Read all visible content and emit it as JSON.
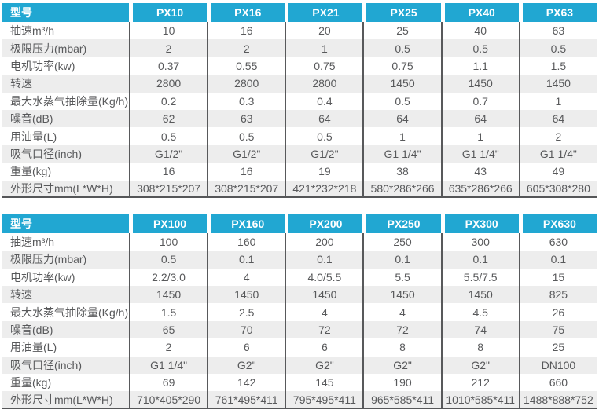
{
  "accent_color": "#21a7d2",
  "text_color": "#58595b",
  "stripe_color": "#ededed",
  "separator_color": "#58595b",
  "tables": [
    {
      "header_label": "型号",
      "models": [
        "PX10",
        "PX16",
        "PX21",
        "PX25",
        "PX40",
        "PX63"
      ],
      "rows": [
        {
          "label": "抽速m³/h",
          "values": [
            "10",
            "16",
            "20",
            "25",
            "40",
            "63"
          ]
        },
        {
          "label": "极限压力(mbar)",
          "values": [
            "2",
            "2",
            "1",
            "0.5",
            "0.5",
            "0.5"
          ]
        },
        {
          "label": "电机功率(kw)",
          "values": [
            "0.37",
            "0.55",
            "0.75",
            "0.75",
            "1.1",
            "1.5"
          ]
        },
        {
          "label": "转速",
          "values": [
            "2800",
            "2800",
            "2800",
            "1450",
            "1450",
            "1450"
          ]
        },
        {
          "label": "最大水蒸气抽除量(Kg/h)",
          "values": [
            "0.2",
            "0.3",
            "0.4",
            "0.5",
            "0.7",
            "1"
          ]
        },
        {
          "label": "噪音(dB)",
          "values": [
            "62",
            "63",
            "64",
            "64",
            "64",
            "64"
          ]
        },
        {
          "label": "用油量(L)",
          "values": [
            "0.5",
            "0.5",
            "0.5",
            "1",
            "1",
            "2"
          ]
        },
        {
          "label": "吸气口径(inch)",
          "values": [
            "G1/2\"",
            "G1/2\"",
            "G1/2\"",
            "G1 1/4\"",
            "G1 1/4\"",
            "G1 1/4\""
          ]
        },
        {
          "label": "重量(kg)",
          "values": [
            "16",
            "16",
            "19",
            "38",
            "43",
            "49"
          ]
        },
        {
          "label": "外形尺寸mm(L*W*H)",
          "values": [
            "308*215*207",
            "308*215*207",
            "421*232*218",
            "580*286*266",
            "635*286*266",
            "605*308*280"
          ]
        }
      ]
    },
    {
      "header_label": "型号",
      "models": [
        "PX100",
        "PX160",
        "PX200",
        "PX250",
        "PX300",
        "PX630"
      ],
      "rows": [
        {
          "label": "抽速m³/h",
          "values": [
            "100",
            "160",
            "200",
            "250",
            "300",
            "630"
          ]
        },
        {
          "label": "极限压力(mbar)",
          "values": [
            "0.5",
            "0.1",
            "0.1",
            "0.1",
            "0.1",
            "0.1"
          ]
        },
        {
          "label": "电机功率(kw)",
          "values": [
            "2.2/3.0",
            "4",
            "4.0/5.5",
            "5.5",
            "5.5/7.5",
            "15"
          ]
        },
        {
          "label": "转速",
          "values": [
            "1450",
            "1450",
            "1450",
            "1450",
            "1450",
            "825"
          ]
        },
        {
          "label": "最大水蒸气抽除量(Kg/h)",
          "values": [
            "1.5",
            "2.5",
            "4",
            "4",
            "4.5",
            "26"
          ]
        },
        {
          "label": "噪音(dB)",
          "values": [
            "65",
            "70",
            "72",
            "72",
            "74",
            "75"
          ]
        },
        {
          "label": "用油量(L)",
          "values": [
            "2",
            "6",
            "6",
            "8",
            "8",
            "25"
          ]
        },
        {
          "label": "吸气口径(inch)",
          "values": [
            "G1 1/4\"",
            "G2\"",
            "G2\"",
            "G2\"",
            "G2\"",
            "DN100"
          ]
        },
        {
          "label": "重量(kg)",
          "values": [
            "69",
            "142",
            "145",
            "190",
            "212",
            "660"
          ]
        },
        {
          "label": "外形尺寸mm(L*W*H)",
          "values": [
            "710*405*290",
            "761*495*411",
            "795*495*411",
            "965*585*411",
            "1010*585*411",
            "1488*888*752"
          ]
        }
      ]
    }
  ]
}
